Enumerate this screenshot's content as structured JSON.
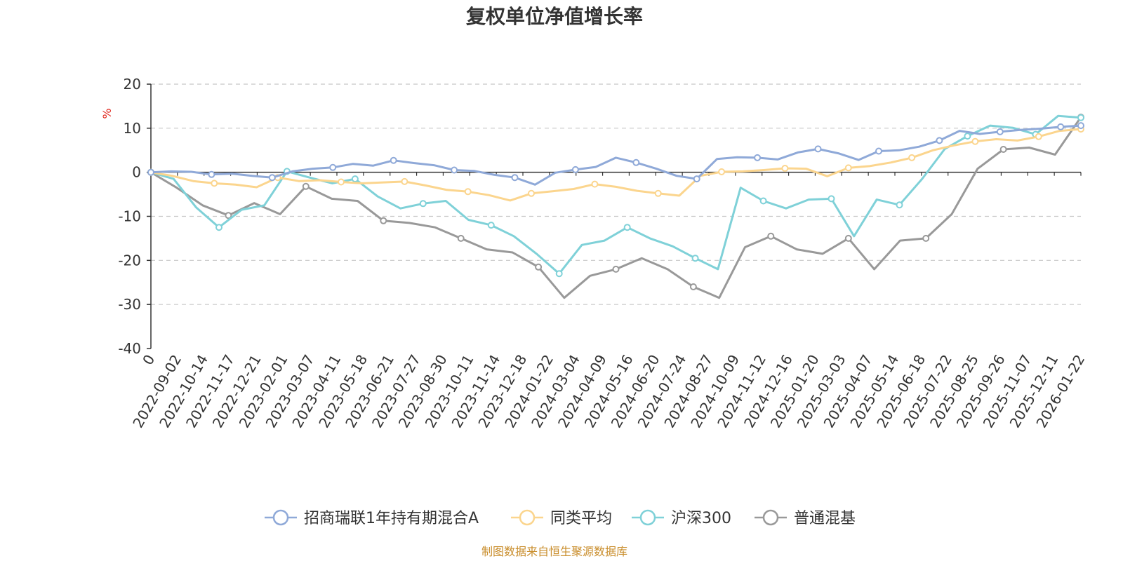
{
  "chart_data": {
    "type": "line",
    "title": "复权单位净值增长率",
    "ylabel": "%",
    "ylim": [
      -40,
      20
    ],
    "yticks": [
      -40,
      -30,
      -20,
      -10,
      0,
      10,
      20
    ],
    "x_tick_labels": [
      "0",
      "2022-09-02",
      "2022-10-14",
      "2022-11-17",
      "2022-12-21",
      "2023-02-01",
      "2023-03-07",
      "2023-04-11",
      "2023-05-18",
      "2023-06-21",
      "2023-07-27",
      "2023-08-30",
      "2023-10-11",
      "2023-11-14",
      "2023-12-18",
      "2024-01-22",
      "2024-03-04",
      "2024-04-09",
      "2024-05-16",
      "2024-06-20",
      "2024-07-24",
      "2024-08-27",
      "2024-10-09",
      "2024-11-12",
      "2024-12-16",
      "2025-01-20",
      "2025-03-03",
      "2025-04-07",
      "2025-05-14",
      "2025-06-18",
      "2025-07-22",
      "2025-08-25",
      "2025-09-26",
      "2025-11-07",
      "2025-12-11",
      "2026-01-22"
    ],
    "grid": true,
    "legend_position": "bottom",
    "series": [
      {
        "name": "招商瑞联1年持有期混合A",
        "color": "#8fa9d8",
        "values": [
          0,
          0.2,
          0.1,
          -0.5,
          -0.3,
          -0.8,
          -1.2,
          0.2,
          0.8,
          1.1,
          1.9,
          1.5,
          2.7,
          2.1,
          1.6,
          0.5,
          0.3,
          -0.6,
          -1.2,
          -2.8,
          -0.1,
          0.6,
          1.2,
          3.3,
          2.2,
          0.8,
          -0.8,
          -1.5,
          3.0,
          3.4,
          3.3,
          2.9,
          4.5,
          5.3,
          4.3,
          2.8,
          4.8,
          5.0,
          5.8,
          7.2,
          9.4,
          8.7,
          9.2,
          9.6,
          9.9,
          10.3,
          10.6
        ]
      },
      {
        "name": "同类平均",
        "color": "#fbd58e",
        "values": [
          0,
          -0.8,
          -2.0,
          -2.5,
          -2.8,
          -3.4,
          -1.2,
          -2.0,
          -1.8,
          -2.2,
          -2.5,
          -2.3,
          -2.1,
          -3.0,
          -4.0,
          -4.4,
          -5.2,
          -6.4,
          -4.8,
          -4.3,
          -3.8,
          -2.7,
          -3.3,
          -4.2,
          -4.8,
          -5.3,
          -0.8,
          0.1,
          0.2,
          0.5,
          0.9,
          0.8,
          -0.9,
          1.0,
          1.4,
          2.2,
          3.3,
          5.0,
          6.1,
          7.0,
          7.5,
          7.2,
          8.1,
          9.4,
          9.8
        ]
      },
      {
        "name": "沪深300",
        "color": "#7fd1d8",
        "values": [
          0,
          -1.5,
          -8.0,
          -12.5,
          -8.5,
          -7.5,
          0.2,
          -1.2,
          -2.5,
          -1.5,
          -5.5,
          -8.2,
          -7.1,
          -6.5,
          -10.8,
          -12.0,
          -14.5,
          -18.5,
          -23.0,
          -16.5,
          -15.5,
          -12.5,
          -15.0,
          -16.8,
          -19.5,
          -22.0,
          -3.5,
          -6.5,
          -8.2,
          -6.2,
          -6.0,
          -14.5,
          -6.2,
          -7.4,
          -1.5,
          5.3,
          8.2,
          10.6,
          10.1,
          8.6,
          12.8,
          12.4
        ]
      },
      {
        "name": "普通混基",
        "color": "#999999",
        "values": [
          0,
          -3.5,
          -7.5,
          -9.8,
          -7.0,
          -9.5,
          -3.2,
          -6.0,
          -6.5,
          -11.0,
          -11.5,
          -12.5,
          -15.0,
          -17.5,
          -18.2,
          -21.5,
          -28.5,
          -23.5,
          -22.0,
          -19.5,
          -22.0,
          -26.0,
          -28.5,
          -17.0,
          -14.5,
          -17.5,
          -18.5,
          -15.0,
          -22.0,
          -15.5,
          -15.0,
          -9.5,
          0.8,
          5.2,
          5.6,
          4.0,
          12.5
        ]
      }
    ],
    "source_note": "制图数据来自恒生聚源数据库"
  }
}
